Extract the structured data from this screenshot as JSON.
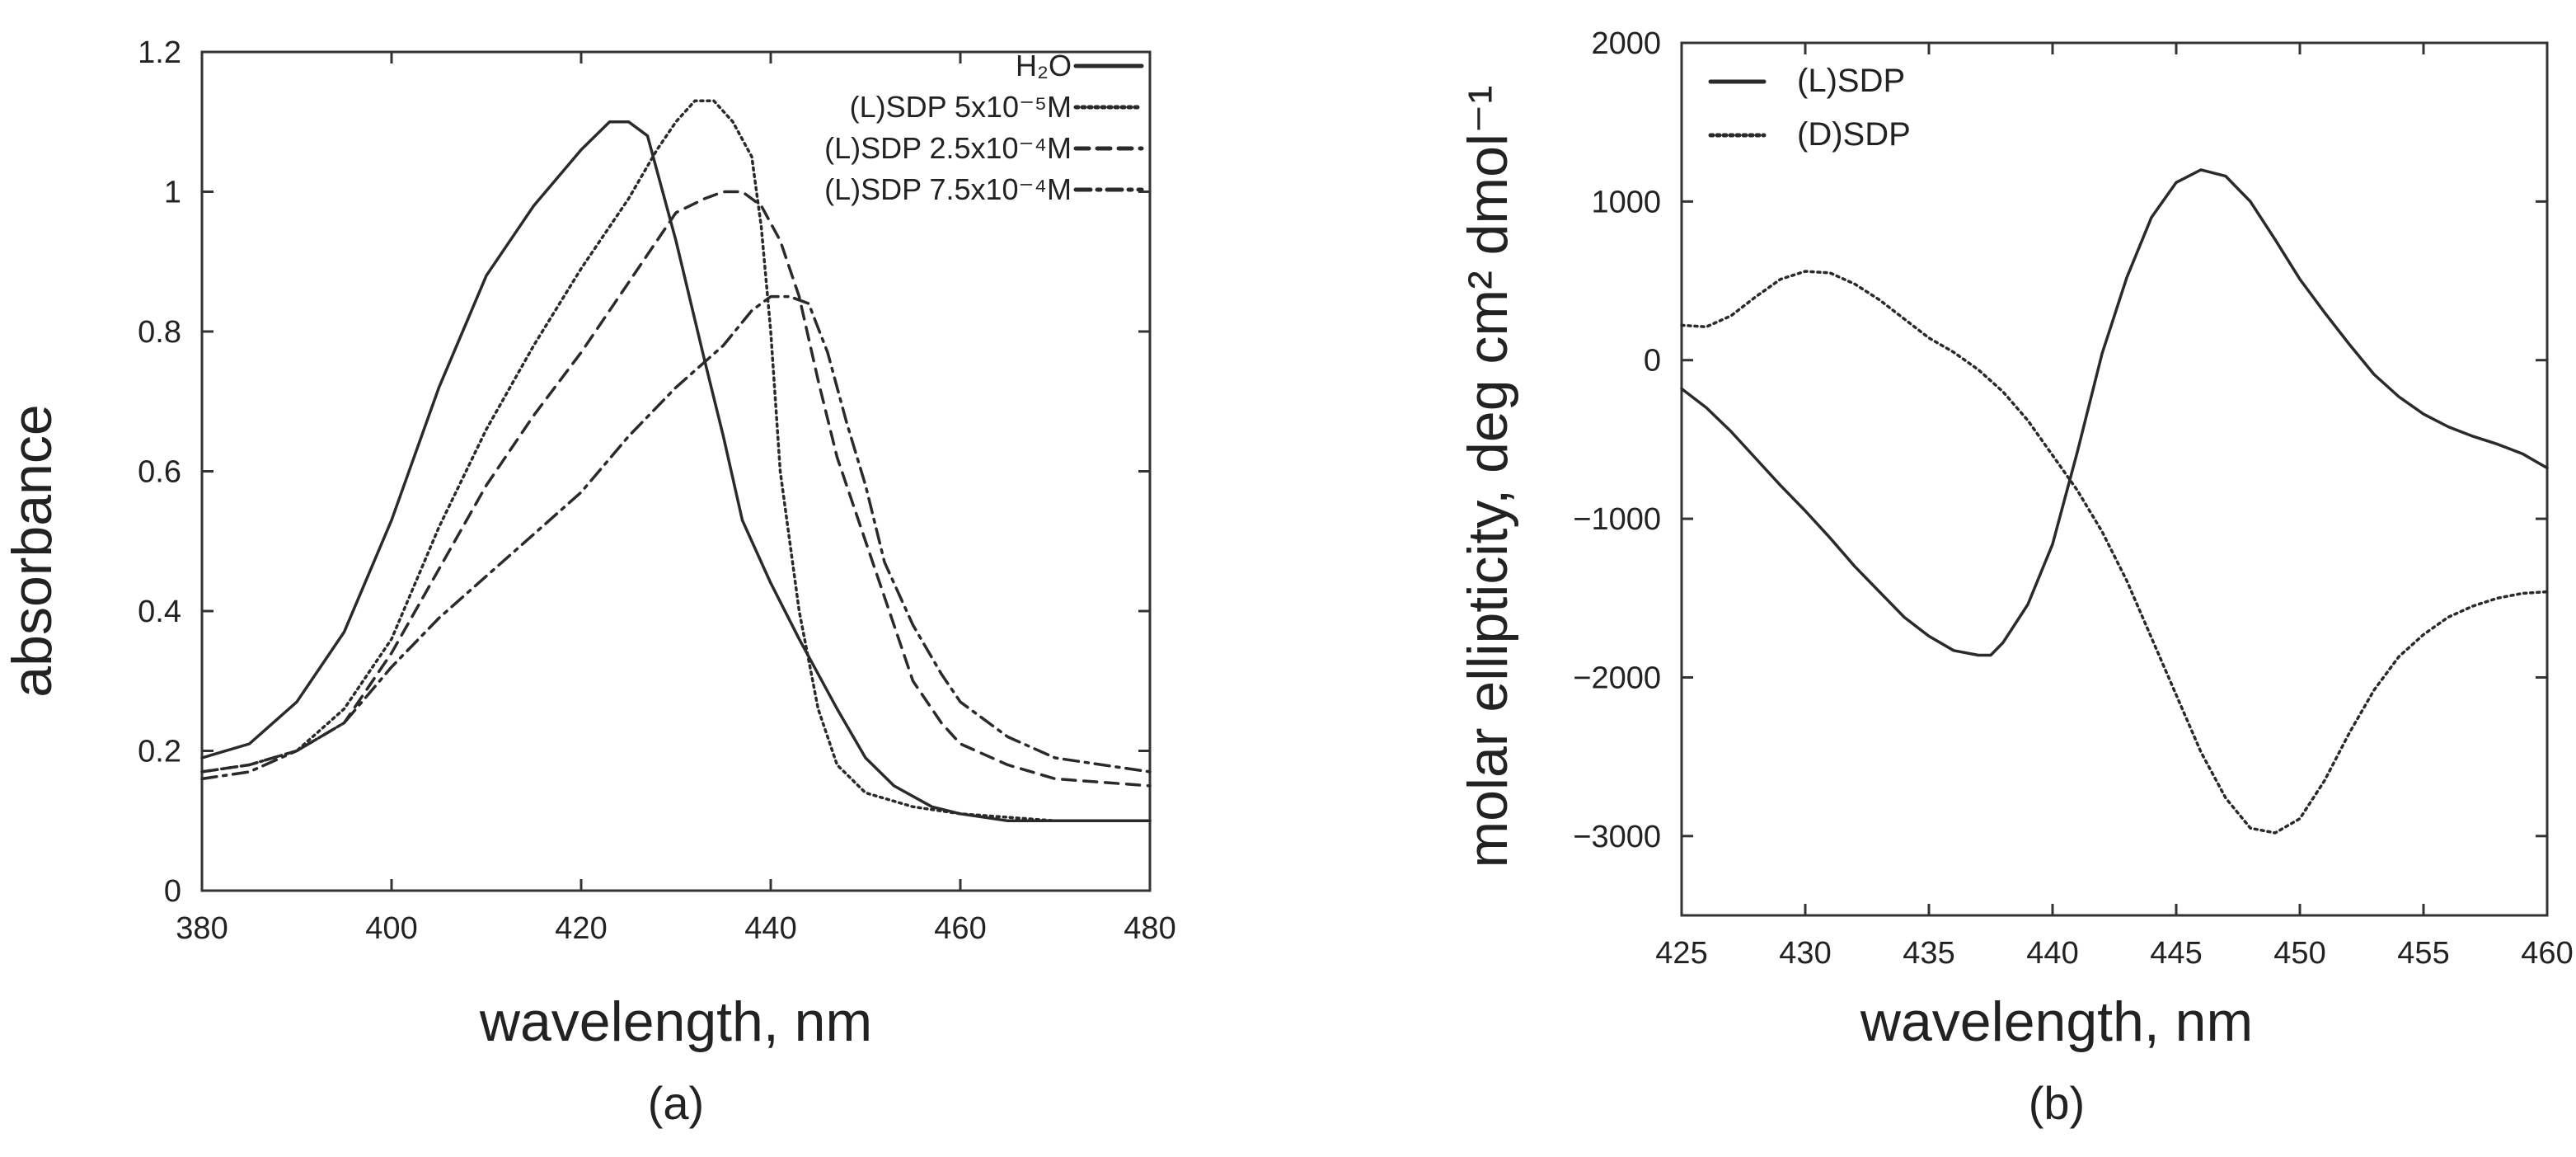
{
  "panels": {
    "a": {
      "label": "(a)"
    },
    "b": {
      "label": "(b)"
    }
  },
  "chart_data": [
    {
      "type": "line",
      "panel": "(a)",
      "xlabel": "wavelength, nm",
      "ylabel": "absorbance",
      "xlim": [
        380,
        480
      ],
      "ylim": [
        0,
        1.2
      ],
      "xticks": [
        "380",
        "400",
        "420",
        "440",
        "460",
        "480"
      ],
      "yticks": [
        "0",
        "0.2",
        "0.4",
        "0.6",
        "0.8",
        "1",
        "1.2"
      ],
      "grid": false,
      "legend": "top-right",
      "series": [
        {
          "name": "H₂O",
          "style": "solid",
          "points": [
            [
              380,
              0.19
            ],
            [
              385,
              0.21
            ],
            [
              390,
              0.27
            ],
            [
              395,
              0.37
            ],
            [
              400,
              0.53
            ],
            [
              405,
              0.72
            ],
            [
              410,
              0.88
            ],
            [
              415,
              0.98
            ],
            [
              420,
              1.06
            ],
            [
              423,
              1.1
            ],
            [
              425,
              1.1
            ],
            [
              427,
              1.08
            ],
            [
              430,
              0.93
            ],
            [
              433,
              0.76
            ],
            [
              435,
              0.65
            ],
            [
              437,
              0.53
            ],
            [
              440,
              0.44
            ],
            [
              443,
              0.36
            ],
            [
              447,
              0.26
            ],
            [
              450,
              0.19
            ],
            [
              453,
              0.15
            ],
            [
              457,
              0.12
            ],
            [
              460,
              0.11
            ],
            [
              465,
              0.1
            ],
            [
              470,
              0.1
            ],
            [
              480,
              0.1
            ]
          ]
        },
        {
          "name": "(L)SDP 5x10⁻⁵M",
          "style": "dotted",
          "points": [
            [
              380,
              0.17
            ],
            [
              385,
              0.18
            ],
            [
              390,
              0.2
            ],
            [
              395,
              0.26
            ],
            [
              400,
              0.36
            ],
            [
              405,
              0.52
            ],
            [
              410,
              0.66
            ],
            [
              415,
              0.78
            ],
            [
              420,
              0.89
            ],
            [
              425,
              0.99
            ],
            [
              428,
              1.06
            ],
            [
              430,
              1.1
            ],
            [
              432,
              1.13
            ],
            [
              434,
              1.13
            ],
            [
              436,
              1.1
            ],
            [
              438,
              1.05
            ],
            [
              439,
              0.95
            ],
            [
              440,
              0.8
            ],
            [
              441,
              0.6
            ],
            [
              443,
              0.4
            ],
            [
              445,
              0.26
            ],
            [
              447,
              0.18
            ],
            [
              450,
              0.14
            ],
            [
              455,
              0.12
            ],
            [
              460,
              0.11
            ],
            [
              470,
              0.1
            ],
            [
              480,
              0.1
            ]
          ]
        },
        {
          "name": "(L)SDP 2.5x10⁻⁴M",
          "style": "dashed",
          "points": [
            [
              380,
              0.17
            ],
            [
              385,
              0.18
            ],
            [
              390,
              0.2
            ],
            [
              395,
              0.24
            ],
            [
              400,
              0.34
            ],
            [
              405,
              0.46
            ],
            [
              410,
              0.58
            ],
            [
              415,
              0.68
            ],
            [
              420,
              0.77
            ],
            [
              425,
              0.87
            ],
            [
              428,
              0.93
            ],
            [
              430,
              0.97
            ],
            [
              433,
              0.99
            ],
            [
              435,
              1.0
            ],
            [
              437,
              1.0
            ],
            [
              439,
              0.98
            ],
            [
              441,
              0.93
            ],
            [
              443,
              0.85
            ],
            [
              445,
              0.73
            ],
            [
              447,
              0.62
            ],
            [
              450,
              0.5
            ],
            [
              453,
              0.38
            ],
            [
              455,
              0.3
            ],
            [
              458,
              0.24
            ],
            [
              460,
              0.21
            ],
            [
              465,
              0.18
            ],
            [
              470,
              0.16
            ],
            [
              480,
              0.15
            ]
          ]
        },
        {
          "name": "(L)SDP 7.5x10⁻⁴M",
          "style": "dashdot",
          "points": [
            [
              380,
              0.16
            ],
            [
              385,
              0.17
            ],
            [
              390,
              0.2
            ],
            [
              395,
              0.24
            ],
            [
              400,
              0.32
            ],
            [
              405,
              0.39
            ],
            [
              410,
              0.45
            ],
            [
              415,
              0.51
            ],
            [
              420,
              0.57
            ],
            [
              425,
              0.65
            ],
            [
              430,
              0.72
            ],
            [
              435,
              0.78
            ],
            [
              438,
              0.83
            ],
            [
              440,
              0.85
            ],
            [
              442,
              0.85
            ],
            [
              444,
              0.84
            ],
            [
              446,
              0.77
            ],
            [
              448,
              0.67
            ],
            [
              450,
              0.58
            ],
            [
              452,
              0.47
            ],
            [
              455,
              0.38
            ],
            [
              458,
              0.31
            ],
            [
              460,
              0.27
            ],
            [
              465,
              0.22
            ],
            [
              470,
              0.19
            ],
            [
              475,
              0.18
            ],
            [
              480,
              0.17
            ]
          ]
        }
      ]
    },
    {
      "type": "line",
      "panel": "(b)",
      "xlabel": "wavelength, nm",
      "ylabel": "molar ellipticity, deg cm² dmol⁻¹",
      "xlim": [
        425,
        460
      ],
      "ylim": [
        -3500,
        2000
      ],
      "xticks": [
        "425",
        "430",
        "435",
        "440",
        "445",
        "450",
        "455",
        "460"
      ],
      "yticks": [
        "−3000",
        "−2000",
        "−1000",
        "0",
        "1000",
        "2000"
      ],
      "grid": false,
      "legend": "top-left",
      "series": [
        {
          "name": "(L)SDP",
          "style": "solid",
          "points": [
            [
              425,
              -180
            ],
            [
              426,
              -300
            ],
            [
              427,
              -450
            ],
            [
              428,
              -620
            ],
            [
              429,
              -790
            ],
            [
              430,
              -950
            ],
            [
              431,
              -1120
            ],
            [
              432,
              -1300
            ],
            [
              433,
              -1460
            ],
            [
              434,
              -1620
            ],
            [
              435,
              -1740
            ],
            [
              436,
              -1830
            ],
            [
              437,
              -1860
            ],
            [
              437.5,
              -1860
            ],
            [
              438,
              -1780
            ],
            [
              439,
              -1540
            ],
            [
              440,
              -1160
            ],
            [
              441,
              -580
            ],
            [
              442,
              40
            ],
            [
              443,
              520
            ],
            [
              444,
              900
            ],
            [
              445,
              1120
            ],
            [
              446,
              1200
            ],
            [
              447,
              1160
            ],
            [
              448,
              1000
            ],
            [
              449,
              760
            ],
            [
              450,
              510
            ],
            [
              451,
              300
            ],
            [
              452,
              100
            ],
            [
              453,
              -90
            ],
            [
              454,
              -230
            ],
            [
              455,
              -340
            ],
            [
              456,
              -420
            ],
            [
              457,
              -480
            ],
            [
              458,
              -530
            ],
            [
              459,
              -590
            ],
            [
              460,
              -680
            ]
          ]
        },
        {
          "name": "(D)SDP",
          "style": "dotted",
          "points": [
            [
              425,
              220
            ],
            [
              426,
              210
            ],
            [
              427,
              280
            ],
            [
              428,
              400
            ],
            [
              429,
              510
            ],
            [
              430,
              560
            ],
            [
              431,
              550
            ],
            [
              432,
              480
            ],
            [
              433,
              380
            ],
            [
              434,
              260
            ],
            [
              435,
              140
            ],
            [
              436,
              50
            ],
            [
              437,
              -60
            ],
            [
              438,
              -200
            ],
            [
              439,
              -380
            ],
            [
              440,
              -600
            ],
            [
              441,
              -820
            ],
            [
              442,
              -1080
            ],
            [
              443,
              -1390
            ],
            [
              444,
              -1750
            ],
            [
              445,
              -2110
            ],
            [
              446,
              -2470
            ],
            [
              447,
              -2760
            ],
            [
              448,
              -2950
            ],
            [
              449,
              -2980
            ],
            [
              450,
              -2890
            ],
            [
              451,
              -2650
            ],
            [
              452,
              -2350
            ],
            [
              453,
              -2080
            ],
            [
              454,
              -1870
            ],
            [
              455,
              -1730
            ],
            [
              456,
              -1620
            ],
            [
              457,
              -1550
            ],
            [
              458,
              -1500
            ],
            [
              459,
              -1470
            ],
            [
              460,
              -1460
            ]
          ]
        }
      ]
    }
  ]
}
